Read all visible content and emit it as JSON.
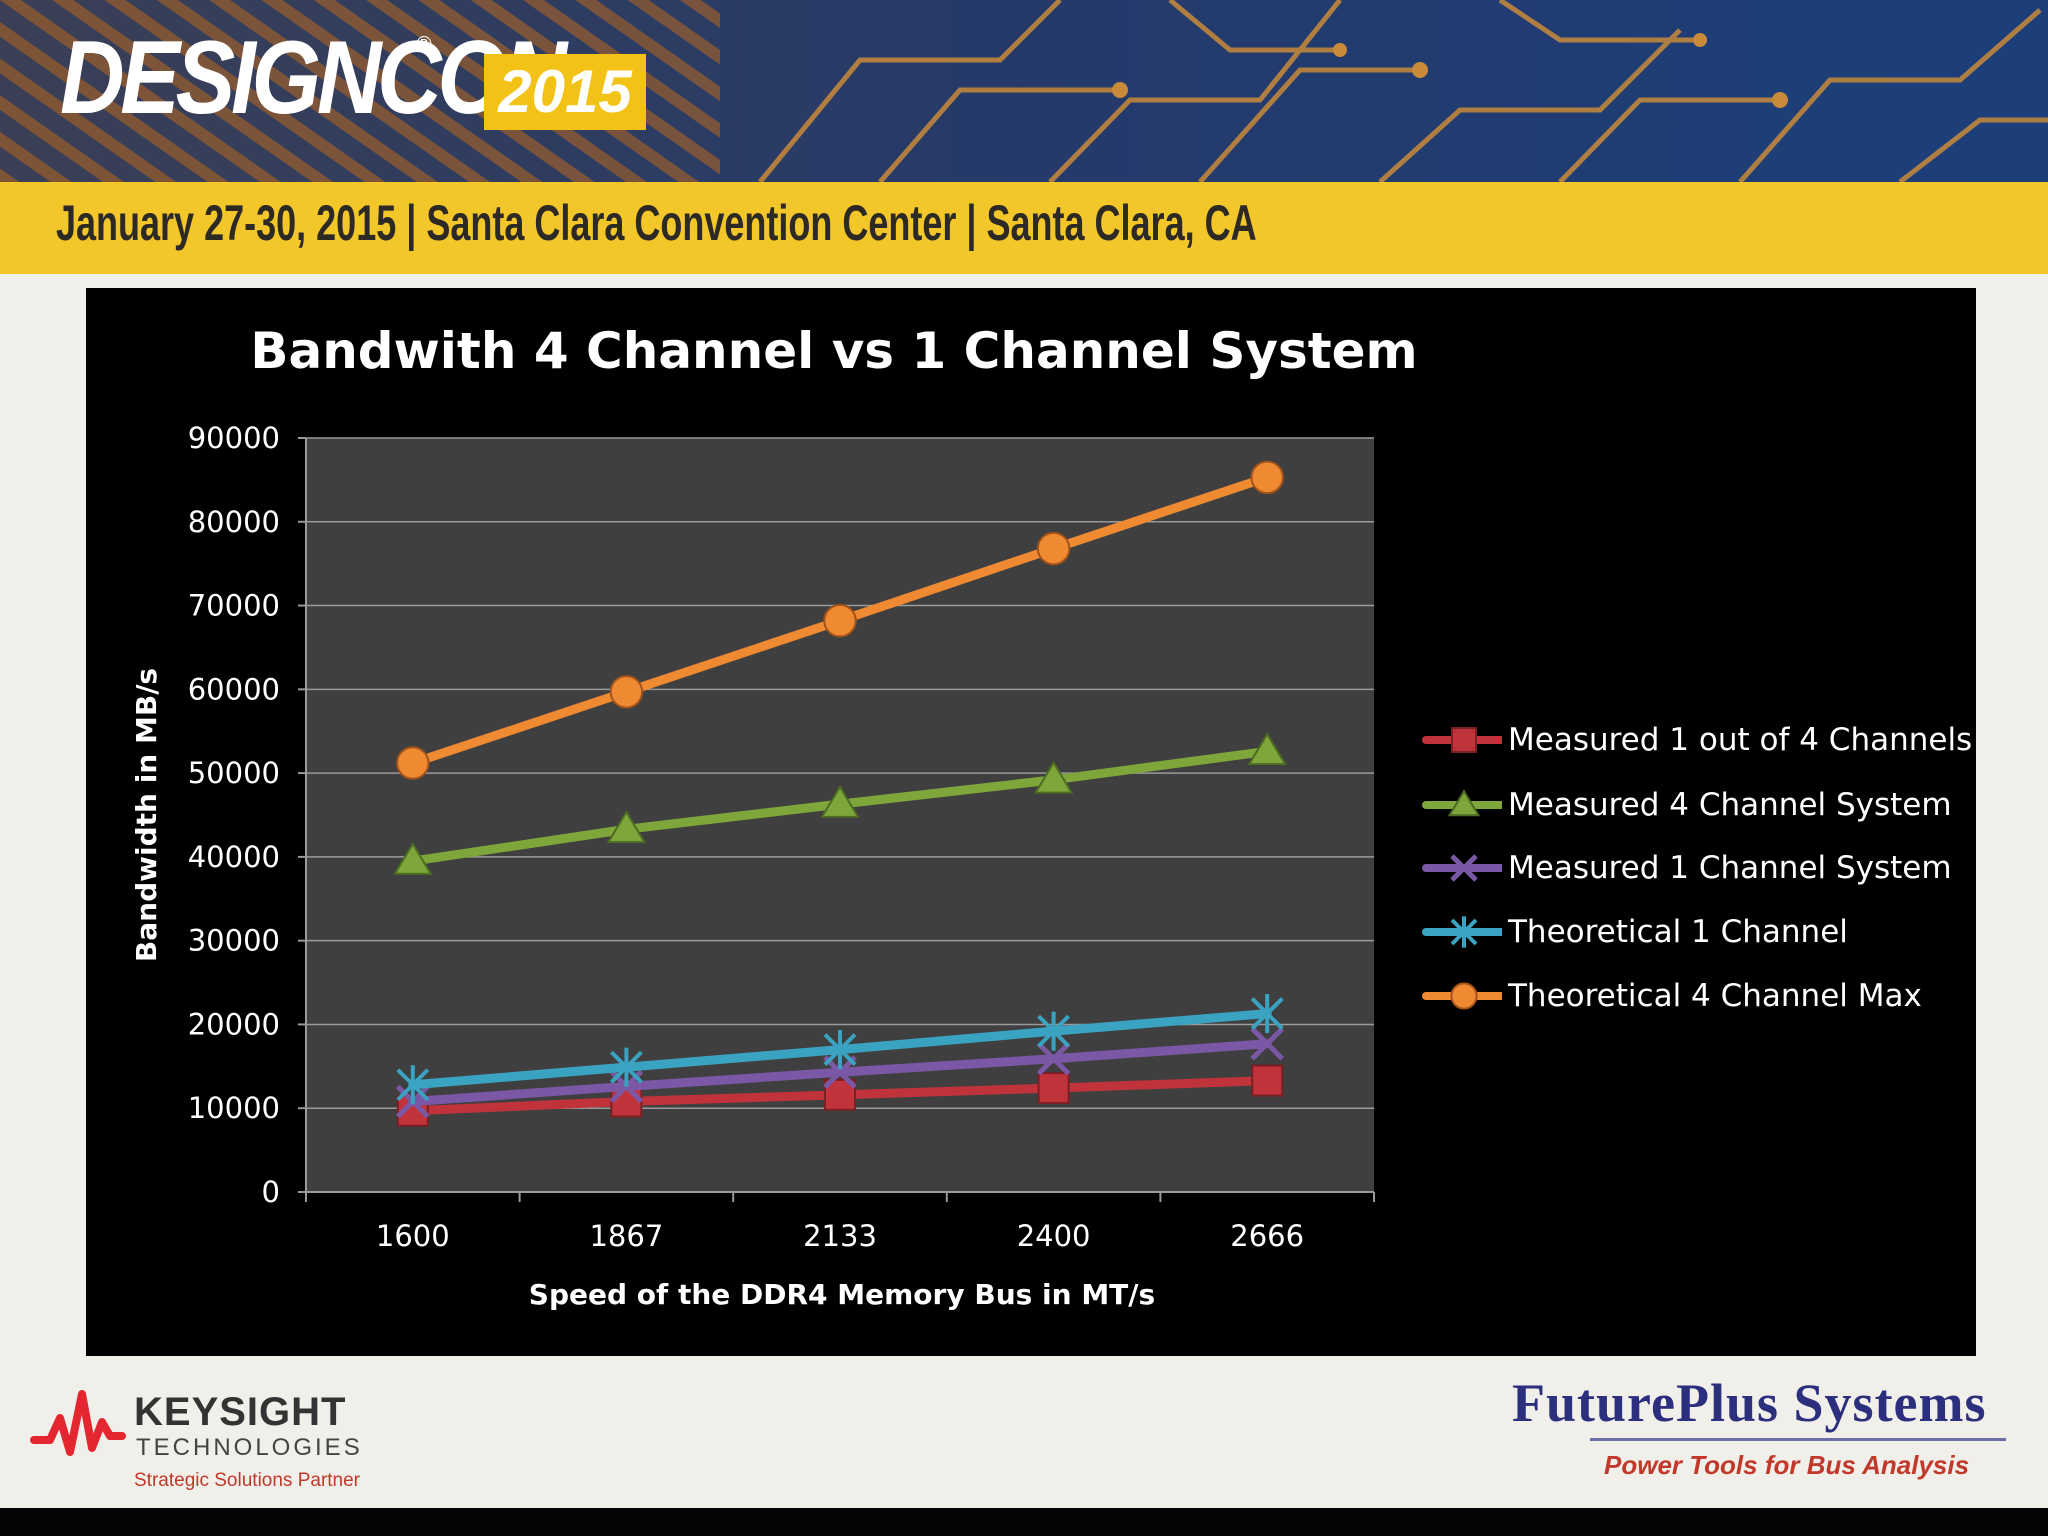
{
  "header": {
    "logo_text": "DESIGNCON",
    "logo_registered": "®",
    "logo_year": "2015",
    "event_line": "January 27-30, 2015 | Santa Clara Convention Center | Santa Clara, CA"
  },
  "chart_data": {
    "type": "line",
    "title": "Bandwith 4 Channel vs 1 Channel System",
    "xlabel": "Speed of the DDR4 Memory Bus in MT/s",
    "ylabel": "Bandwidth in MB/s",
    "categories": [
      "1600",
      "1867",
      "2133",
      "2400",
      "2666"
    ],
    "ylim": [
      0,
      90000
    ],
    "yticks": [
      "0",
      "10000",
      "20000",
      "30000",
      "40000",
      "50000",
      "60000",
      "70000",
      "80000",
      "90000"
    ],
    "grid": true,
    "legend_position": "right",
    "series": [
      {
        "name": "Measured 1 out of 4 Channels",
        "values": [
          9700,
          10800,
          11600,
          12400,
          13300
        ],
        "color": "#c0333a",
        "marker": "square"
      },
      {
        "name": "Measured 4 Channel System",
        "values": [
          39500,
          43300,
          46300,
          49200,
          52600
        ],
        "color": "#7ea63a",
        "marker": "triangle"
      },
      {
        "name": "Measured 1 Channel System",
        "values": [
          10800,
          12600,
          14300,
          15900,
          17700
        ],
        "color": "#7b58a6",
        "marker": "x"
      },
      {
        "name": "Theoretical 1 Channel",
        "values": [
          12800,
          14900,
          17000,
          19200,
          21300
        ],
        "color": "#3ba3c2",
        "marker": "star"
      },
      {
        "name": "Theoretical 4 Channel Max",
        "values": [
          51200,
          59700,
          68200,
          76800,
          85300
        ],
        "color": "#ef8a33",
        "marker": "circle"
      }
    ]
  },
  "footer": {
    "keysight_name": "KEYSIGHT",
    "keysight_sub": "TECHNOLOGIES",
    "keysight_partner": "Strategic Solutions Partner",
    "futureplus_name": "FuturePlus  Systems",
    "futureplus_tagline": "Power Tools for Bus Analysis"
  }
}
